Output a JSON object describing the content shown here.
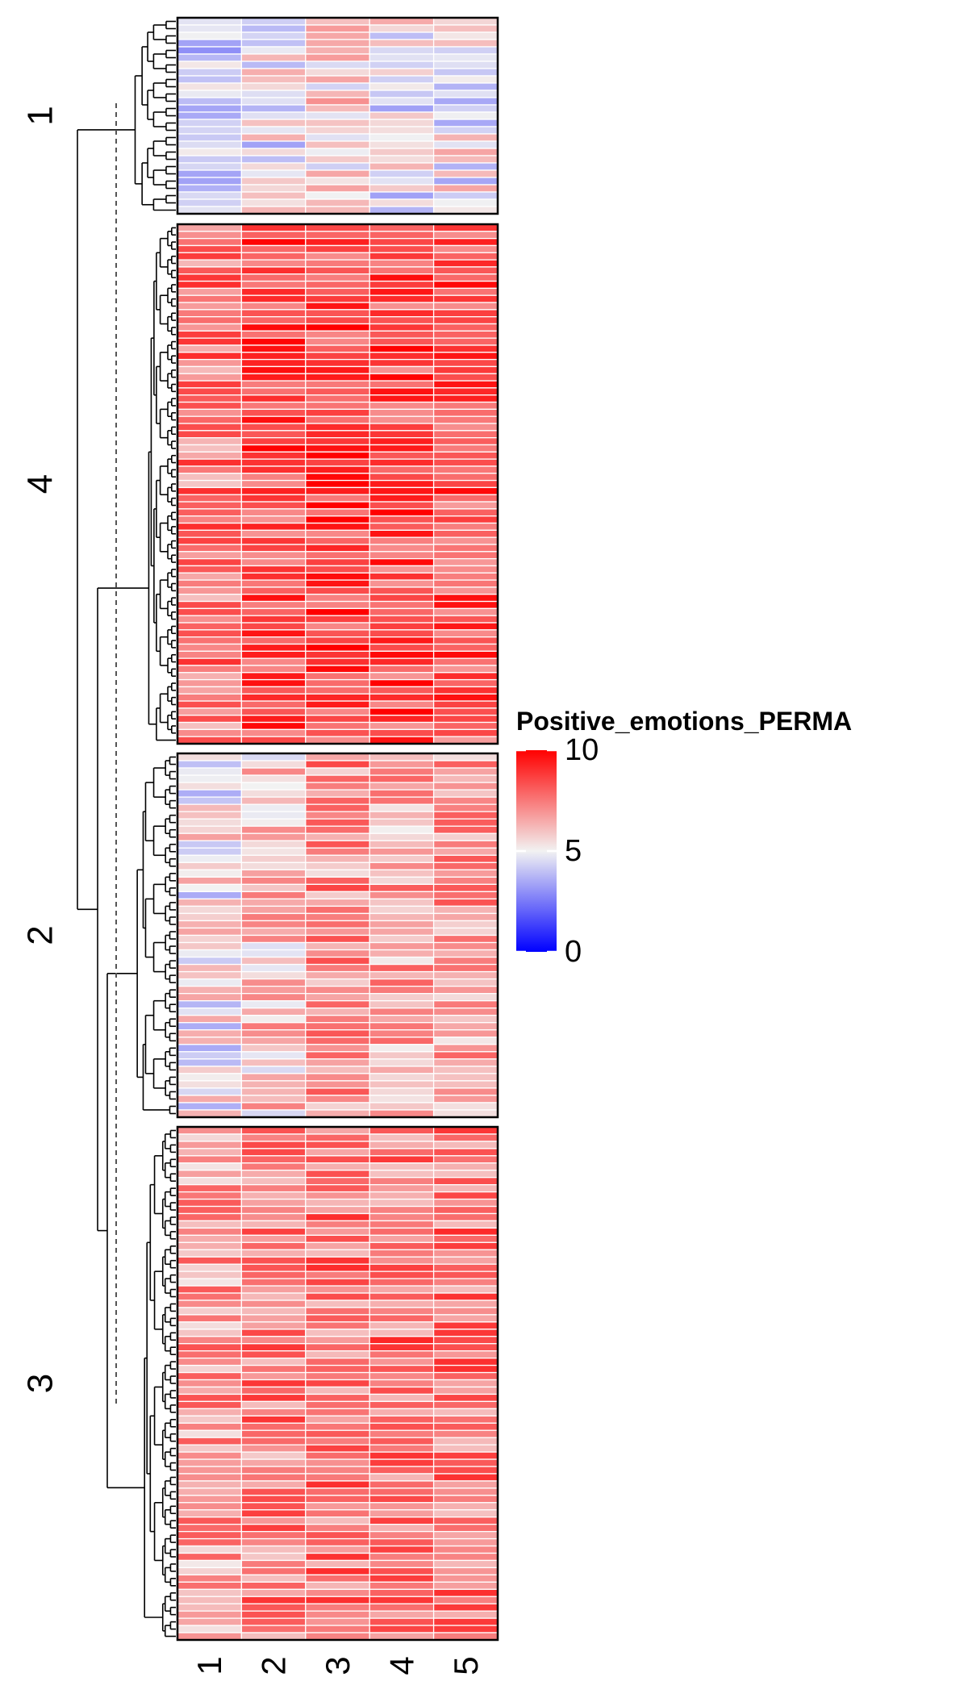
{
  "chart_data": {
    "type": "heatmap",
    "legend": {
      "title": "Positive_emotions_PERMA",
      "ticks": [
        "10",
        "5",
        "0"
      ],
      "range": [
        0,
        10
      ],
      "colors": {
        "low": "#0000ff",
        "mid": "#f2f2f2",
        "high": "#ff0000"
      }
    },
    "columns": [
      "1",
      "2",
      "3",
      "4",
      "5"
    ],
    "row_clusters": [
      {
        "label": "1",
        "rows": 27,
        "column_means": [
          4.2,
          4.9,
          5.6,
          4.9,
          5.0
        ]
      },
      {
        "label": "4",
        "rows": 73,
        "column_means": [
          7.5,
          8.4,
          8.7,
          8.5,
          8.3
        ]
      },
      {
        "label": "2",
        "rows": 50,
        "column_means": [
          5.1,
          6.0,
          7.0,
          6.6,
          6.8
        ]
      },
      {
        "label": "3",
        "rows": 71,
        "column_means": [
          6.8,
          7.4,
          7.6,
          7.6,
          7.6
        ]
      }
    ],
    "dendrogram": "rows",
    "grid": false,
    "legend_position": "right"
  }
}
